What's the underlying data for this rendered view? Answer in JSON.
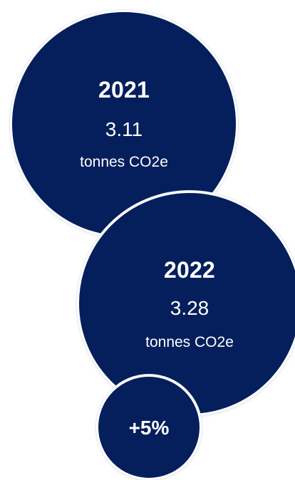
{
  "colors": {
    "bubble_fill": "#041f5c",
    "bubble_border": "#ffffff",
    "text": "#ffffff"
  },
  "bubbles": [
    {
      "year": "2021",
      "value": "3.11",
      "unit": "tonnes CO2e"
    },
    {
      "year": "2022",
      "value": "3.28",
      "unit": "tonnes CO2e"
    }
  ],
  "change": {
    "label": "+5%"
  }
}
